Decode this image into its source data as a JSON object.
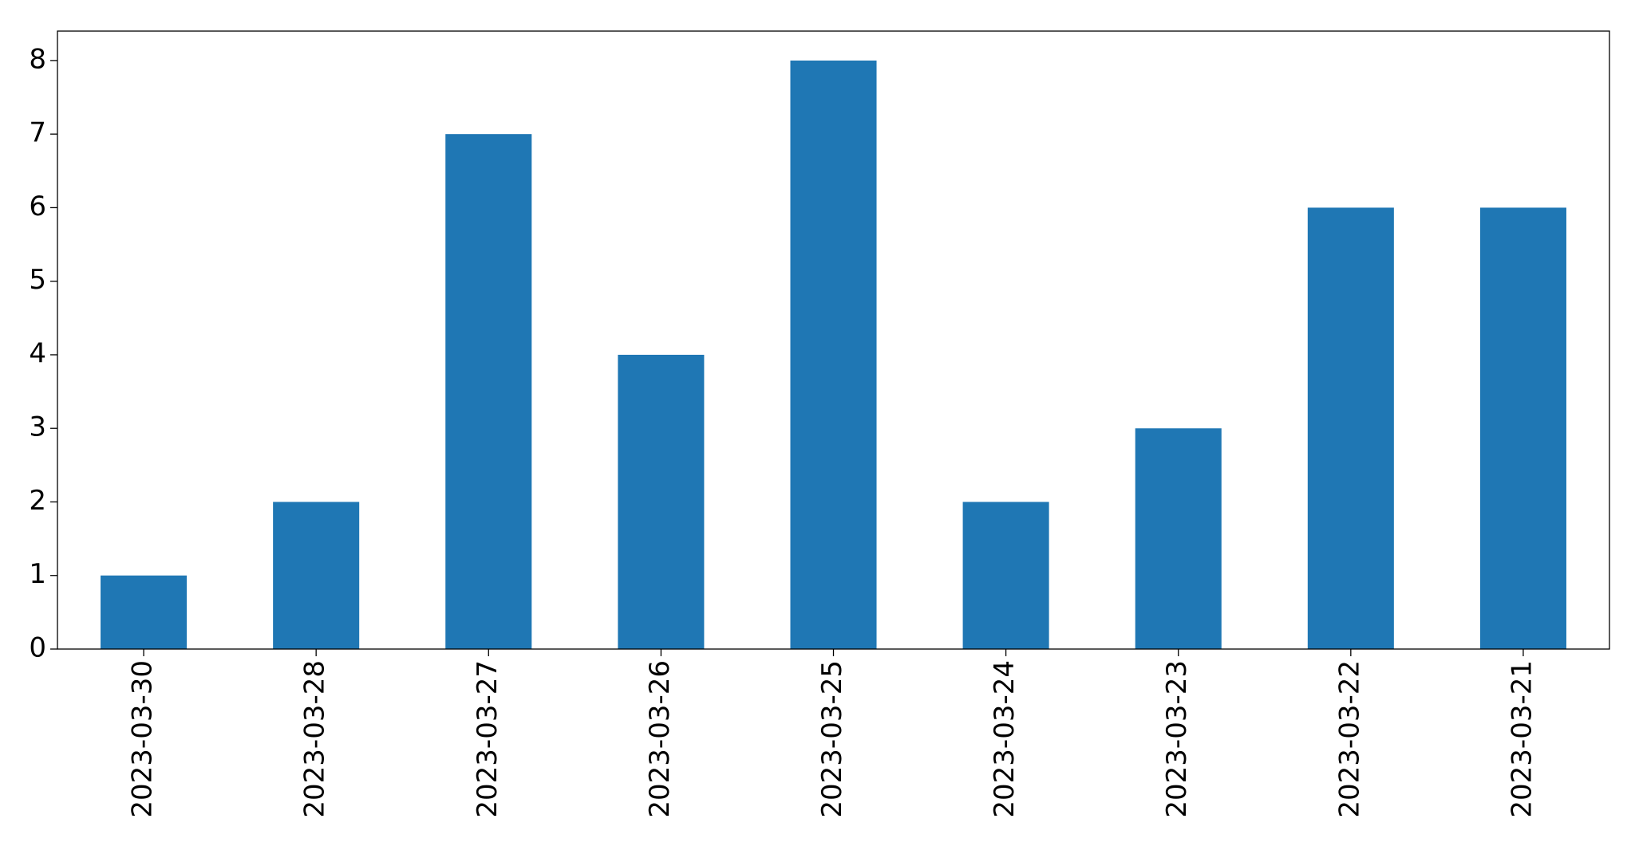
{
  "chart_data": {
    "type": "bar",
    "categories": [
      "2023-03-30",
      "2023-03-28",
      "2023-03-27",
      "2023-03-26",
      "2023-03-25",
      "2023-03-24",
      "2023-03-23",
      "2023-03-22",
      "2023-03-21"
    ],
    "values": [
      1,
      2,
      7,
      4,
      8,
      2,
      3,
      6,
      6
    ],
    "color": "#1f77b4",
    "ylim": [
      0,
      8.4
    ],
    "yticks": [
      0,
      1,
      2,
      3,
      4,
      5,
      6,
      7,
      8
    ],
    "grid": false
  }
}
